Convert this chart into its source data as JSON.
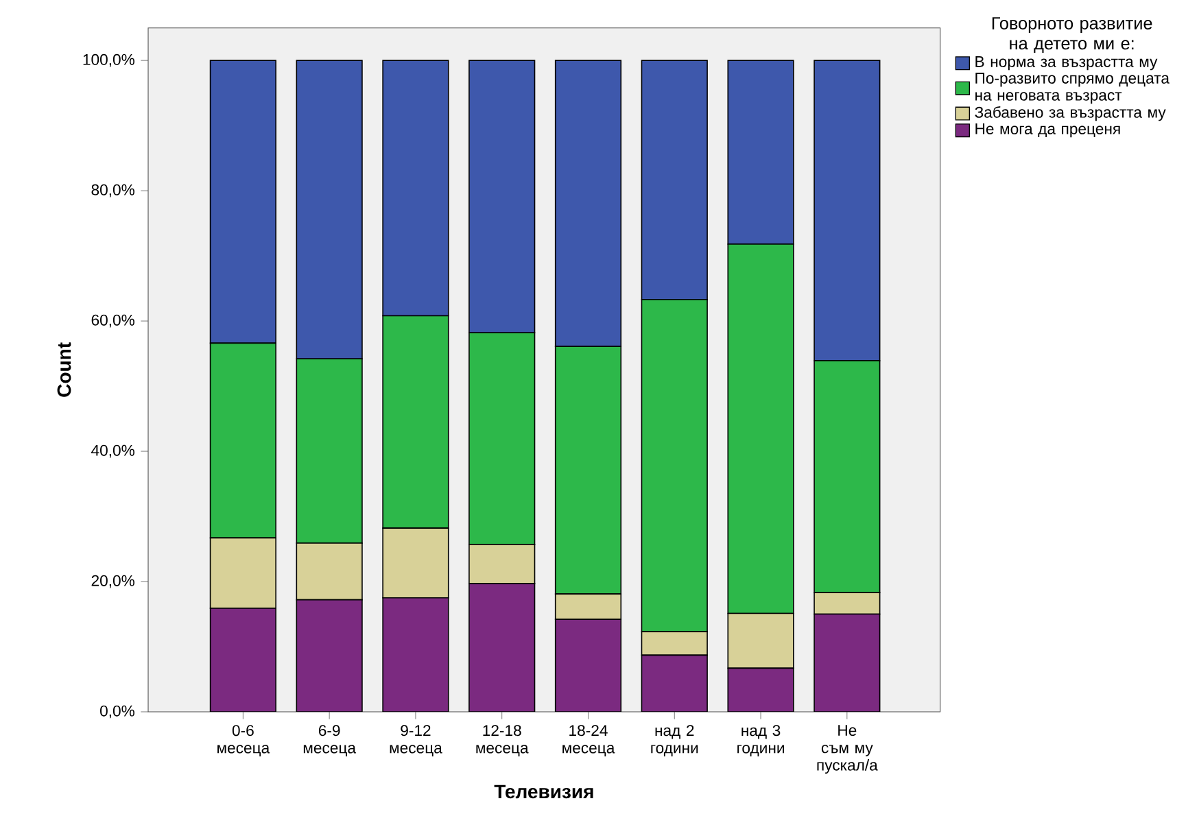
{
  "chart_data": {
    "type": "bar",
    "stacked": true,
    "xlabel": "Телевизия",
    "ylabel": "Count",
    "legend_title": "Говорното развитие на детето ми е:",
    "legend": "right",
    "categories": [
      "0-6 месеца",
      "6-9 месеца",
      "9-12 месеца",
      "12-18 месеца",
      "18-24 месеца",
      "над 2 години",
      "над 3 години",
      "Не съм му пускал/а"
    ],
    "ylim": [
      0,
      105
    ],
    "yticks": [
      {
        "value": 0,
        "label": "0,0%"
      },
      {
        "value": 20,
        "label": "20,0%"
      },
      {
        "value": 40,
        "label": "40,0%"
      },
      {
        "value": 60,
        "label": "60,0%"
      },
      {
        "value": 80,
        "label": "80,0%"
      },
      {
        "value": 100,
        "label": "100,0%"
      }
    ],
    "series": [
      {
        "name": "Не мога да преценя",
        "color": "#7b2a80",
        "values": [
          15.9,
          17.2,
          17.5,
          19.7,
          14.2,
          8.7,
          6.7,
          15.0
        ]
      },
      {
        "name": "Забавено за възрастта му",
        "color": "#d8d198",
        "values": [
          10.8,
          8.7,
          10.7,
          6.0,
          3.9,
          3.6,
          8.4,
          3.3
        ]
      },
      {
        "name": "По-развито спрямо децата на неговата възраст",
        "color": "#2db84a",
        "values": [
          29.9,
          28.3,
          32.6,
          32.5,
          38.0,
          51.0,
          56.7,
          35.6
        ]
      },
      {
        "name": "В норма за възрастта му",
        "color": "#3e58ac",
        "values": [
          43.4,
          45.8,
          39.2,
          41.8,
          43.9,
          36.7,
          28.2,
          46.1
        ]
      }
    ]
  }
}
